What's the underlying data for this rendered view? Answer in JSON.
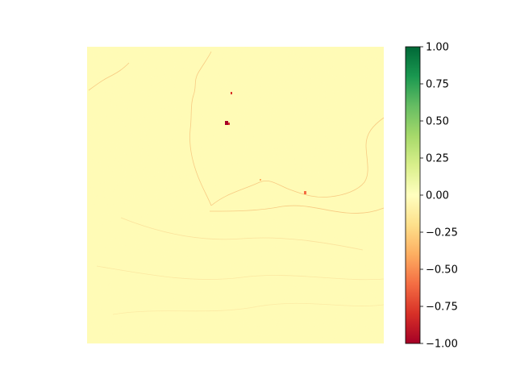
{
  "chart_data": {
    "type": "heatmap",
    "title": "",
    "xlabel": "",
    "ylabel": "",
    "axes_visible": false,
    "colormap": "RdYlGn",
    "vmin": -1.0,
    "vmax": 1.0,
    "dominant_value": 0.0,
    "dominant_color": "#fffbb6",
    "colorbar": {
      "position": "right",
      "ticks": [
        1.0,
        0.75,
        0.5,
        0.25,
        0.0,
        -0.25,
        -0.5,
        -0.75,
        -1.0
      ],
      "tick_labels": [
        "1.00",
        "0.75",
        "0.50",
        "0.25",
        "0.00",
        "−0.25",
        "−0.50",
        "−0.75",
        "−1.00"
      ]
    },
    "colormap_stops": [
      {
        "value": -1.0,
        "color": "#a50026"
      },
      {
        "value": -0.8,
        "color": "#d73027"
      },
      {
        "value": -0.6,
        "color": "#f46d43"
      },
      {
        "value": -0.4,
        "color": "#fdae61"
      },
      {
        "value": -0.2,
        "color": "#fee08b"
      },
      {
        "value": 0.0,
        "color": "#ffffbf"
      },
      {
        "value": 0.2,
        "color": "#d9ef8b"
      },
      {
        "value": 0.4,
        "color": "#a6d96a"
      },
      {
        "value": 0.6,
        "color": "#66bd63"
      },
      {
        "value": 0.8,
        "color": "#1a9850"
      },
      {
        "value": 1.0,
        "color": "#006837"
      }
    ]
  }
}
